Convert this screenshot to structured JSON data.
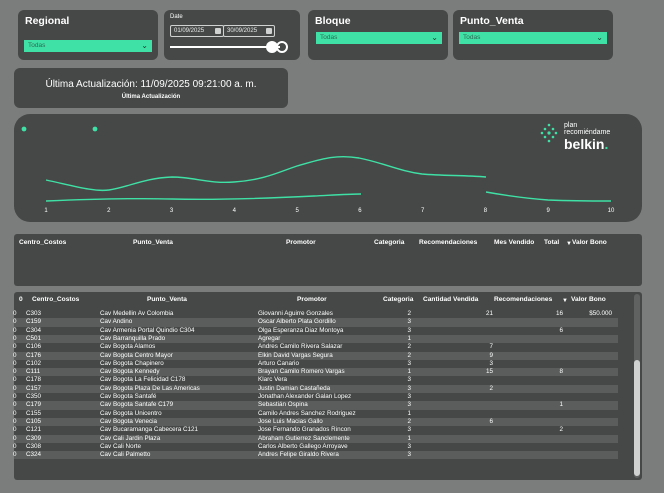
{
  "filters": {
    "regional": {
      "title": "Regional",
      "value": "Todas"
    },
    "date": {
      "title": "Date",
      "start": "01/09/2025",
      "end": "30/09/2025"
    },
    "bloque": {
      "title": "Bloque",
      "value": "Todas"
    },
    "punto_venta": {
      "title": "Punto_Venta",
      "value": "Todas"
    }
  },
  "update_card": {
    "value": "Última Actualización: 11/09/2025 09:21:00 a. m.",
    "label": "Última Actualización"
  },
  "logo": {
    "line1": "plan",
    "line2": "recomiéndame",
    "brand": "belkin",
    "brand_dot": "."
  },
  "chart_data": {
    "type": "line",
    "x": [
      1,
      2,
      3,
      4,
      5,
      6,
      7,
      8,
      9,
      10
    ],
    "series": [
      {
        "values": [
          null,
          null,
          null,
          null,
          null,
          null,
          null,
          null,
          null,
          null
        ]
      },
      {
        "values": [
          null,
          null,
          null,
          null,
          null,
          null,
          null,
          null,
          null,
          null
        ]
      }
    ],
    "colors": [
      "#3fe1a6",
      "#3fe1a6"
    ],
    "grid": false
  },
  "top_table": {
    "headers": [
      "Centro_Costos",
      "Punto_Venta",
      "Promotor",
      "Categoria",
      "Recomendaciones",
      "Mes Vendido",
      "Total",
      "Valor Bono"
    ]
  },
  "main_table": {
    "headers": [
      "0",
      "Centro_Costos",
      "Punto_Venta",
      "Promotor",
      "Categoria",
      "Cantidad Vendida",
      "Recomendaciones",
      "Valor Bono"
    ],
    "rows": [
      [
        "0",
        "C303",
        "Cav Medellin Av Colombia",
        "Giovanni Aguirre Gonzales",
        "2",
        "21",
        "16",
        "$50.000"
      ],
      [
        "0",
        "C159",
        "Cav Andino",
        "Oscar Alberto Plata Gordillo",
        "3",
        "",
        "",
        ""
      ],
      [
        "0",
        "C304",
        "Cav Armenia Portal Quindio C304",
        "Olga Esperanza Diaz Montoya",
        "3",
        "",
        "6",
        ""
      ],
      [
        "0",
        "C501",
        "Cav Barranquilla Prado",
        "Agregar",
        "1",
        "",
        "",
        ""
      ],
      [
        "0",
        "C106",
        "Cav Bogota Alamos",
        "Andres Camilo Rivera Salazar",
        "2",
        "7",
        "",
        ""
      ],
      [
        "0",
        "C176",
        "Cav Bogota Centro Mayor",
        "Elkin David Vargas Segura",
        "2",
        "9",
        "",
        ""
      ],
      [
        "0",
        "C102",
        "Cav Bogota Chapinero",
        "Arturo Canario",
        "3",
        "3",
        "",
        ""
      ],
      [
        "0",
        "C111",
        "Cav Bogota Kennedy",
        "Brayan Camilo Romero Vargas",
        "1",
        "15",
        "8",
        ""
      ],
      [
        "0",
        "C178",
        "Cav Bogota La Felicidad C178",
        "Klarc Vera",
        "3",
        "",
        "",
        ""
      ],
      [
        "0",
        "C157",
        "Cav Bogota Plaza De Las Americas",
        "Justin Damian Castañeda",
        "3",
        "2",
        "",
        ""
      ],
      [
        "0",
        "C350",
        "Cav Bogota Santafé",
        "Jonathan Alexander Galan Lopez",
        "3",
        "",
        "",
        ""
      ],
      [
        "0",
        "C179",
        "Cav Bogota Santafe C179",
        "Sebastián Ospina",
        "3",
        "",
        "1",
        ""
      ],
      [
        "0",
        "C155",
        "Cav Bogota Unicentro",
        "Camilo Andres Sanchez Rodriguez",
        "1",
        "",
        "",
        ""
      ],
      [
        "0",
        "C105",
        "Cav Bogota Venecia",
        "Jose Luis Macias Gallo",
        "2",
        "6",
        "",
        ""
      ],
      [
        "0",
        "C121",
        "Cav Bucaramanga Cabecera C121",
        "Jose Fernando Granados Rincon",
        "3",
        "",
        "2",
        ""
      ],
      [
        "0",
        "C309",
        "Cav Cali Jardin Plaza",
        "Abraham Gutierrez Sanclemente",
        "1",
        "",
        "",
        ""
      ],
      [
        "0",
        "C308",
        "Cav Cali Norte",
        "Carlos Alberto Gallego Arroyave",
        "3",
        "",
        "",
        ""
      ],
      [
        "0",
        "C324",
        "Cav Cali Palmetto",
        "Andres Felipe Giraldo Rivera",
        "3",
        "",
        "",
        ""
      ]
    ]
  }
}
